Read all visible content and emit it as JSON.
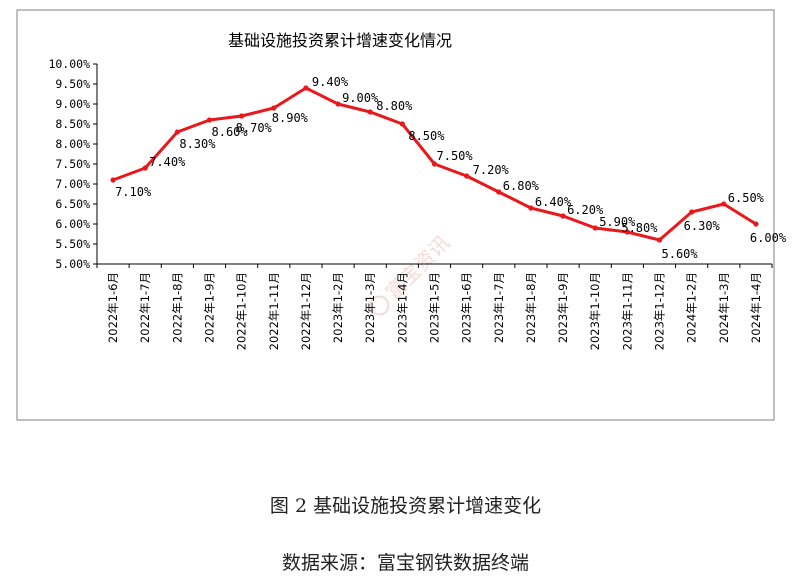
{
  "chart_data": {
    "type": "line",
    "title": "基础设施投资累计增速变化情况",
    "xlabel": "",
    "ylabel": "",
    "ylim": [
      5.0,
      10.0
    ],
    "y_ticks": [
      "5.00%",
      "5.50%",
      "6.00%",
      "6.50%",
      "7.00%",
      "7.50%",
      "8.00%",
      "8.50%",
      "9.00%",
      "9.50%",
      "10.00%"
    ],
    "categories": [
      "2022年1-6月",
      "2022年1-7月",
      "2022年1-8月",
      "2022年1-9月",
      "2022年1-10月",
      "2022年1-11月",
      "2022年1-12月",
      "2023年1-2月",
      "2023年1-3月",
      "2023年1-4月",
      "2023年1-5月",
      "2023年1-6月",
      "2023年1-7月",
      "2023年1-8月",
      "2023年1-9月",
      "2023年1-10月",
      "2023年1-11月",
      "2023年1-12月",
      "2024年1-2月",
      "2024年1-3月",
      "2024年1-4月"
    ],
    "series": [
      {
        "values": [
          7.1,
          7.4,
          8.3,
          8.6,
          8.7,
          8.9,
          9.4,
          9.0,
          8.8,
          8.5,
          7.5,
          7.2,
          6.8,
          6.4,
          6.2,
          5.9,
          5.8,
          5.6,
          6.3,
          6.5,
          6.0
        ],
        "data_labels": [
          "7.10%",
          "7.40%",
          "8.30%",
          "8.60%",
          "8.70%",
          "8.90%",
          "9.40%",
          "9.00%",
          "8.80%",
          "8.50%",
          "7.50%",
          "7.20%",
          "6.80%",
          "6.40%",
          "6.20%",
          "5.90%",
          "5.80%",
          "5.60%",
          "6.30%",
          "6.50%",
          "6.00%"
        ]
      }
    ],
    "line_color": "#e8191c",
    "grid": false,
    "legend": "none"
  },
  "watermark": "富宝资讯",
  "figure_caption": "图 2 基础设施投资累计增速变化",
  "source_caption": "数据来源：富宝钢铁数据终端"
}
